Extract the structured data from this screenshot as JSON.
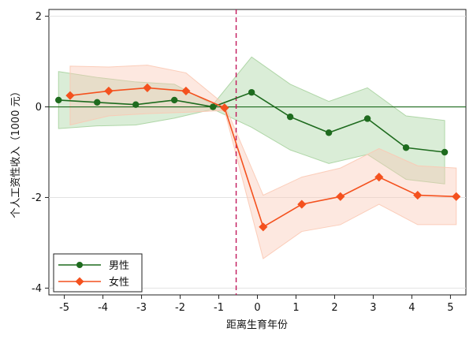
{
  "chart_data": {
    "type": "line",
    "title": "",
    "xlabel": "距离生育年份",
    "ylabel": "个人工资性收入（1000 元）",
    "xlim": [
      -5.4,
      5.4
    ],
    "ylim": [
      -4.15,
      2.15
    ],
    "xticks": [
      -5,
      -4,
      -3,
      -2,
      -1,
      0,
      1,
      2,
      3,
      4,
      5
    ],
    "xtick_labels": [
      "-5",
      "-4",
      "-3",
      "-2",
      "-1",
      "0",
      "1",
      "2",
      "3",
      "4",
      "5"
    ],
    "yticks": [
      -4,
      -2,
      0,
      2
    ],
    "ytick_labels": [
      "-4",
      "-2",
      "0",
      "2"
    ],
    "grid": "horizontal",
    "reference_lines": {
      "y": 0,
      "x": -0.55
    },
    "legend_position": "bottom-left",
    "series": [
      {
        "name": "男性",
        "color": "#1e6b1e",
        "band_color": "#a8d3a0",
        "marker": "circle",
        "x": [
          -5.15,
          -4.15,
          -3.15,
          -2.15,
          -1.15,
          -0.15,
          0.85,
          1.85,
          2.85,
          3.85,
          4.85
        ],
        "y": [
          0.15,
          0.1,
          0.05,
          0.15,
          0.0,
          0.32,
          -0.22,
          -0.57,
          -0.26,
          -0.9,
          -1.0
        ],
        "lower": [
          -0.48,
          -0.42,
          -0.4,
          -0.25,
          -0.05,
          -0.45,
          -0.95,
          -1.25,
          -1.05,
          -1.6,
          -1.7
        ],
        "upper": [
          0.78,
          0.65,
          0.55,
          0.5,
          0.05,
          1.1,
          0.5,
          0.12,
          0.42,
          -0.2,
          -0.3
        ]
      },
      {
        "name": "女性",
        "color": "#f4511e",
        "band_color": "#fbc9b4",
        "marker": "diamond",
        "x": [
          -4.85,
          -3.85,
          -2.85,
          -1.85,
          -0.85,
          0.15,
          1.15,
          2.15,
          3.15,
          4.15,
          5.15
        ],
        "y": [
          0.25,
          0.35,
          0.42,
          0.35,
          -0.02,
          -2.65,
          -2.15,
          -1.98,
          -1.55,
          -1.95,
          -1.98
        ],
        "lower": [
          -0.4,
          -0.2,
          -0.15,
          -0.12,
          -0.08,
          -3.35,
          -2.75,
          -2.6,
          -2.15,
          -2.6,
          -2.6
        ],
        "upper": [
          0.9,
          0.88,
          0.92,
          0.75,
          0.05,
          -1.95,
          -1.55,
          -1.35,
          -0.92,
          -1.3,
          -1.35
        ]
      }
    ]
  }
}
